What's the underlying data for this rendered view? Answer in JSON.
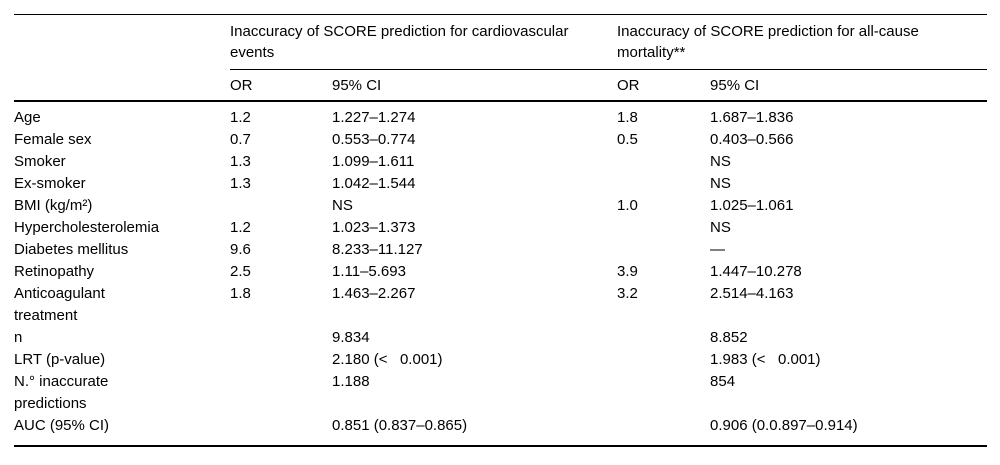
{
  "table": {
    "groups": [
      {
        "title": "Inaccuracy of SCORE prediction for cardiovascular\nevents"
      },
      {
        "title": "Inaccuracy of SCORE prediction for all-cause\nmortality**"
      }
    ],
    "subheaders": {
      "or1": "OR",
      "ci1": "95% CI",
      "or2": "OR",
      "ci2": "95% CI"
    },
    "rows": [
      {
        "label": "Age",
        "or1": "1.2",
        "ci1": "1.227–1.274",
        "or2": "1.8",
        "ci2": "1.687–1.836"
      },
      {
        "label": "Female sex",
        "or1": "0.7",
        "ci1": "0.553–0.774",
        "or2": "0.5",
        "ci2": "0.403–0.566"
      },
      {
        "label": "Smoker",
        "or1": "1.3",
        "ci1": "1.099–1.611",
        "or2": "",
        "ci2": "NS"
      },
      {
        "label": "Ex-smoker",
        "or1": "1.3",
        "ci1": "1.042–1.544",
        "or2": "",
        "ci2": "NS"
      },
      {
        "label": "BMI (kg/m²)",
        "or1": "",
        "ci1": "NS",
        "or2": "1.0",
        "ci2": "1.025–1.061"
      },
      {
        "label": "Hypercholesterolemia",
        "or1": "1.2",
        "ci1": "1.023–1.373",
        "or2": "",
        "ci2": "NS"
      },
      {
        "label": "Diabetes mellitus",
        "or1": "9.6",
        "ci1": "8.233–11.127",
        "or2": "",
        "ci2": "—"
      },
      {
        "label": "Retinopathy",
        "or1": "2.5",
        "ci1": "1.11–5.693",
        "or2": "3.9",
        "ci2": "1.447–10.278"
      },
      {
        "label": "Anticoagulant\ntreatment",
        "or1": "1.8",
        "ci1": "1.463–2.267",
        "or2": "3.2",
        "ci2": "2.514–4.163"
      },
      {
        "label": "n",
        "or1": "",
        "ci1": "9.834",
        "or2": "",
        "ci2": "8.852"
      },
      {
        "label": "LRT (p-value)",
        "or1": "",
        "ci1": "2.180 (<   0.001)",
        "or2": "",
        "ci2": "1.983 (<   0.001)"
      },
      {
        "label": "N.° inaccurate\npredictions",
        "or1": "",
        "ci1": "1.188",
        "or2": "",
        "ci2": "854"
      },
      {
        "label": "AUC (95% CI)",
        "or1": "",
        "ci1": "0.851 (0.837–0.865)",
        "or2": "",
        "ci2": "0.906 (0.0.897–0.914)"
      }
    ]
  }
}
